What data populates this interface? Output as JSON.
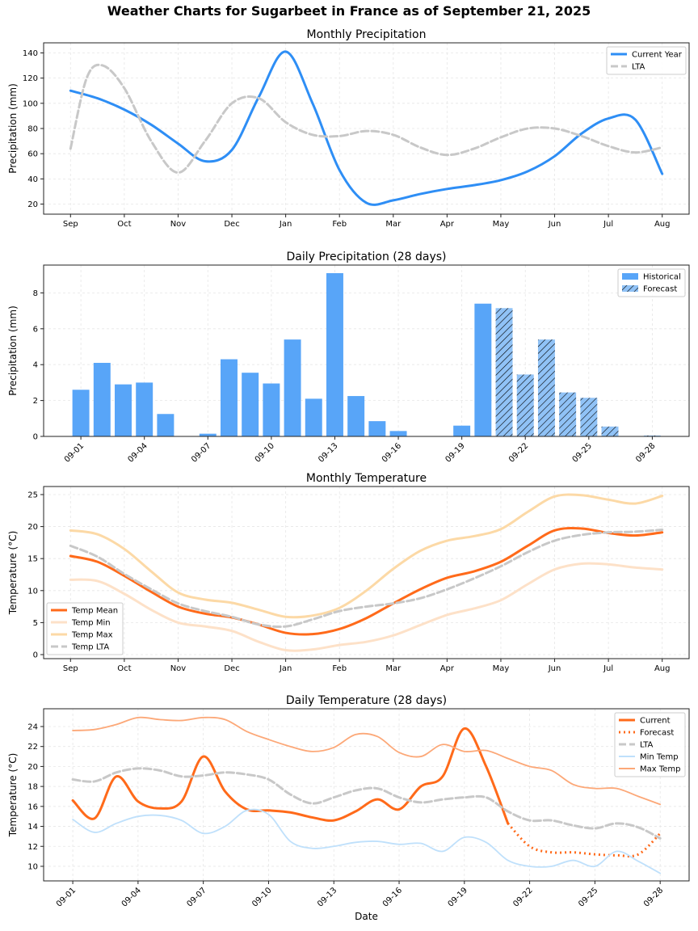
{
  "title": "Weather Charts for Sugarbeet in France as of September 21, 2025",
  "chart_data": [
    {
      "type": "line",
      "title": "Monthly Precipitation",
      "xlabel": "",
      "ylabel": "Precipitation (mm)",
      "ylim": [
        12,
        148
      ],
      "xlim": [
        -0.5,
        11.5
      ],
      "yticks": [
        20,
        40,
        60,
        80,
        100,
        120,
        140
      ],
      "xtick_labels": [
        "Sep",
        "Oct",
        "Nov",
        "Dec",
        "Jan",
        "Feb",
        "Mar",
        "Apr",
        "May",
        "Jun",
        "Jul",
        "Aug"
      ],
      "grid": true,
      "legend": "top-right",
      "series": [
        {
          "name": "Current Year",
          "color": "#2e8ef5",
          "style": "solid",
          "x": [
            0,
            0.5,
            1,
            1.5,
            2,
            2.5,
            3,
            3.5,
            4,
            4.5,
            5,
            5.5,
            6,
            6.5,
            7,
            7.5,
            8,
            8.5,
            9,
            9.5,
            10,
            10.5,
            11
          ],
          "values": [
            110,
            104,
            95,
            83,
            68,
            54,
            63,
            105,
            141,
            100,
            47,
            21,
            23,
            28,
            32,
            35,
            39,
            46,
            58,
            76,
            88,
            87,
            44
          ]
        },
        {
          "name": "LTA",
          "color": "#c8c8c8",
          "style": "dashed",
          "x": [
            0,
            0.3,
            0.6,
            1,
            1.5,
            2,
            2.5,
            3,
            3.5,
            4,
            4.5,
            5,
            5.5,
            6,
            6.5,
            7,
            7.5,
            8,
            8.5,
            9,
            9.5,
            10,
            10.5,
            11
          ],
          "values": [
            64,
            120,
            130,
            112,
            70,
            45,
            70,
            100,
            104,
            85,
            75,
            74,
            78,
            75,
            65,
            59,
            64,
            73,
            80,
            80,
            74,
            66,
            61,
            65
          ]
        }
      ]
    },
    {
      "type": "bar",
      "title": "Daily Precipitation (28 days)",
      "xlabel": "",
      "ylabel": "Precipitation (mm)",
      "ylim": [
        0,
        9.55
      ],
      "xlim": [
        -0.76,
        29.74
      ],
      "yticks": [
        0,
        2,
        4,
        6,
        8
      ],
      "categories": [
        "09-01",
        "09-02",
        "09-03",
        "09-04",
        "09-05",
        "09-06",
        "09-07",
        "09-08",
        "09-09",
        "09-10",
        "09-11",
        "09-12",
        "09-13",
        "09-14",
        "09-15",
        "09-16",
        "09-17",
        "09-18",
        "09-19",
        "09-20",
        "09-21",
        "09-22",
        "09-23",
        "09-24",
        "09-25",
        "09-26",
        "09-27",
        "09-28"
      ],
      "xtick_labels": [
        "09-01",
        "09-04",
        "09-07",
        "09-10",
        "09-13",
        "09-16",
        "09-19",
        "09-22",
        "09-25",
        "09-28"
      ],
      "values": [
        2.6,
        4.1,
        2.9,
        3.0,
        1.25,
        0,
        0.15,
        4.3,
        3.55,
        2.95,
        5.4,
        2.1,
        9.1,
        2.25,
        0.85,
        0.3,
        0,
        0,
        0.6,
        7.4,
        7.15,
        3.45,
        5.4,
        2.45,
        2.15,
        0.55,
        0,
        0.05
      ],
      "forecast_from_index": 20,
      "grid": true,
      "legend": "top-right",
      "series": [
        {
          "name": "Historical",
          "color": "#58a5f8"
        },
        {
          "name": "Forecast",
          "color": "#90c2f6"
        }
      ]
    },
    {
      "type": "line",
      "title": "Monthly Temperature",
      "xlabel": "",
      "ylabel": "Temperature (°C)",
      "ylim": [
        -0.63,
        26.26
      ],
      "xlim": [
        -0.5,
        11.5
      ],
      "yticks": [
        0,
        5,
        10,
        15,
        20,
        25
      ],
      "xtick_labels": [
        "Sep",
        "Oct",
        "Nov",
        "Dec",
        "Jan",
        "Feb",
        "Mar",
        "Apr",
        "May",
        "Jun",
        "Jul",
        "Aug"
      ],
      "grid": true,
      "legend": "lower-left",
      "series": [
        {
          "name": "Temp Mean",
          "color": "#ff6a1a",
          "style": "solid",
          "width": 3,
          "x": [
            0,
            0.5,
            1,
            1.5,
            2,
            2.5,
            3,
            3.5,
            4,
            4.5,
            5,
            5.5,
            6,
            6.5,
            7,
            7.5,
            8,
            8.5,
            9,
            9.5,
            10,
            10.5,
            11
          ],
          "values": [
            15.4,
            14.5,
            12.3,
            9.8,
            7.5,
            6.4,
            5.8,
            4.7,
            3.4,
            3.2,
            4.0,
            5.7,
            8.0,
            10.2,
            12.0,
            13.0,
            14.5,
            17.0,
            19.4,
            19.7,
            19.0,
            18.6,
            19.1
          ]
        },
        {
          "name": "Temp Min",
          "color": "#fde1c8",
          "style": "solid",
          "width": 3,
          "x": [
            0,
            0.5,
            1,
            1.5,
            2,
            2.5,
            3,
            3.5,
            4,
            4.5,
            5,
            5.5,
            6,
            6.5,
            7,
            7.5,
            8,
            8.5,
            9,
            9.5,
            10,
            10.5,
            11
          ],
          "values": [
            11.7,
            11.5,
            9.5,
            7.0,
            5.0,
            4.4,
            3.7,
            2.0,
            0.7,
            0.8,
            1.5,
            2.0,
            3.0,
            4.6,
            6.2,
            7.2,
            8.5,
            11.0,
            13.3,
            14.2,
            14.1,
            13.6,
            13.3
          ]
        },
        {
          "name": "Temp Max",
          "color": "#fcd9a6",
          "style": "solid",
          "width": 3,
          "x": [
            0,
            0.5,
            1,
            1.5,
            2,
            2.5,
            3,
            3.5,
            4,
            4.5,
            5,
            5.5,
            6,
            6.5,
            7,
            7.5,
            8,
            8.5,
            9,
            9.5,
            10,
            10.5,
            11
          ],
          "values": [
            19.4,
            18.8,
            16.5,
            13.0,
            9.7,
            8.6,
            8.1,
            7.0,
            5.9,
            6.1,
            7.3,
            10.0,
            13.4,
            16.2,
            17.8,
            18.5,
            19.6,
            22.3,
            24.7,
            24.9,
            24.2,
            23.6,
            24.8
          ]
        },
        {
          "name": "Temp LTA",
          "color": "#c8c8c8",
          "style": "dashed",
          "width": 3,
          "x": [
            0,
            0.5,
            1,
            1.5,
            2,
            2.5,
            3,
            3.5,
            4,
            4.5,
            5,
            5.5,
            6,
            6.5,
            7,
            7.5,
            8,
            8.5,
            9,
            9.5,
            10,
            10.5,
            11
          ],
          "values": [
            17.0,
            15.3,
            12.6,
            10.2,
            8.0,
            6.8,
            5.9,
            4.7,
            4.4,
            5.5,
            6.8,
            7.5,
            8.0,
            8.8,
            10.2,
            11.9,
            13.8,
            16.0,
            17.8,
            18.7,
            19.1,
            19.2,
            19.5
          ]
        }
      ]
    },
    {
      "type": "line",
      "title": "Daily Temperature (28 days)",
      "xlabel": "Date",
      "ylabel": "Temperature (°C)",
      "ylim": [
        8.54,
        25.78
      ],
      "xlim": [
        -0.34,
        29.33
      ],
      "yticks": [
        10,
        12,
        14,
        16,
        18,
        20,
        22,
        24
      ],
      "xtick_labels": [
        "09-01",
        "09-04",
        "09-07",
        "09-10",
        "09-13",
        "09-16",
        "09-19",
        "09-22",
        "09-25",
        "09-28"
      ],
      "grid": true,
      "legend": "top-right",
      "series": [
        {
          "name": "Current",
          "color": "#ff6a1a",
          "style": "solid",
          "width": 3,
          "x": [
            1,
            2,
            3,
            4,
            5,
            6,
            7,
            8,
            9,
            10,
            11,
            12,
            13,
            14,
            15,
            16,
            17,
            18,
            19,
            20,
            21
          ],
          "values": [
            16.6,
            14.8,
            19.0,
            16.5,
            15.8,
            16.5,
            21.0,
            17.5,
            15.7,
            15.6,
            15.4,
            14.9,
            14.6,
            15.5,
            16.7,
            15.7,
            18.0,
            19.0,
            23.8,
            20.0,
            14.3
          ]
        },
        {
          "name": "Forecast",
          "color": "#ff6a1a",
          "style": "dotted",
          "width": 3,
          "x": [
            21,
            22,
            23,
            24,
            25,
            26,
            27,
            28
          ],
          "values": [
            14.3,
            12.0,
            11.4,
            11.4,
            11.2,
            11.1,
            11.2,
            13.3
          ]
        },
        {
          "name": "LTA",
          "color": "#c8c8c8",
          "style": "dashed",
          "width": 3,
          "x": [
            1,
            2,
            3,
            4,
            5,
            6,
            7,
            8,
            9,
            10,
            11,
            12,
            13,
            14,
            15,
            16,
            17,
            18,
            19,
            20,
            21,
            22,
            23,
            24,
            25,
            26,
            27,
            28
          ],
          "values": [
            18.7,
            18.5,
            19.4,
            19.8,
            19.6,
            19.0,
            19.1,
            19.4,
            19.2,
            18.7,
            17.2,
            16.3,
            16.9,
            17.6,
            17.8,
            16.9,
            16.4,
            16.7,
            16.9,
            16.9,
            15.5,
            14.6,
            14.6,
            14.1,
            13.8,
            14.3,
            13.9,
            12.8
          ]
        },
        {
          "name": "Min Temp",
          "color": "#bfe0fb",
          "style": "solid",
          "width": 1.8,
          "x": [
            1,
            2,
            3,
            4,
            5,
            6,
            7,
            8,
            9,
            10,
            11,
            12,
            13,
            14,
            15,
            16,
            17,
            18,
            19,
            20,
            21,
            22,
            23,
            24,
            25,
            26,
            27,
            28
          ],
          "values": [
            14.7,
            13.4,
            14.3,
            15.0,
            15.1,
            14.6,
            13.3,
            14.0,
            15.6,
            15.2,
            12.5,
            11.8,
            12.0,
            12.4,
            12.5,
            12.2,
            12.3,
            11.5,
            12.9,
            12.4,
            10.6,
            10.0,
            10.0,
            10.6,
            10.0,
            11.5,
            10.5,
            9.3
          ]
        },
        {
          "name": "Max Temp",
          "color": "#fca878",
          "style": "solid",
          "width": 1.8,
          "x": [
            1,
            2,
            3,
            4,
            5,
            6,
            7,
            8,
            9,
            10,
            11,
            12,
            13,
            14,
            15,
            16,
            17,
            18,
            19,
            20,
            21,
            22,
            23,
            24,
            25,
            26,
            27,
            28
          ],
          "values": [
            23.6,
            23.7,
            24.2,
            24.9,
            24.7,
            24.6,
            24.9,
            24.7,
            23.5,
            22.7,
            22.0,
            21.5,
            21.9,
            23.2,
            23.0,
            21.4,
            21.0,
            22.2,
            21.5,
            21.6,
            20.8,
            20.0,
            19.6,
            18.2,
            17.8,
            17.8,
            17.0,
            16.2
          ]
        }
      ]
    }
  ]
}
